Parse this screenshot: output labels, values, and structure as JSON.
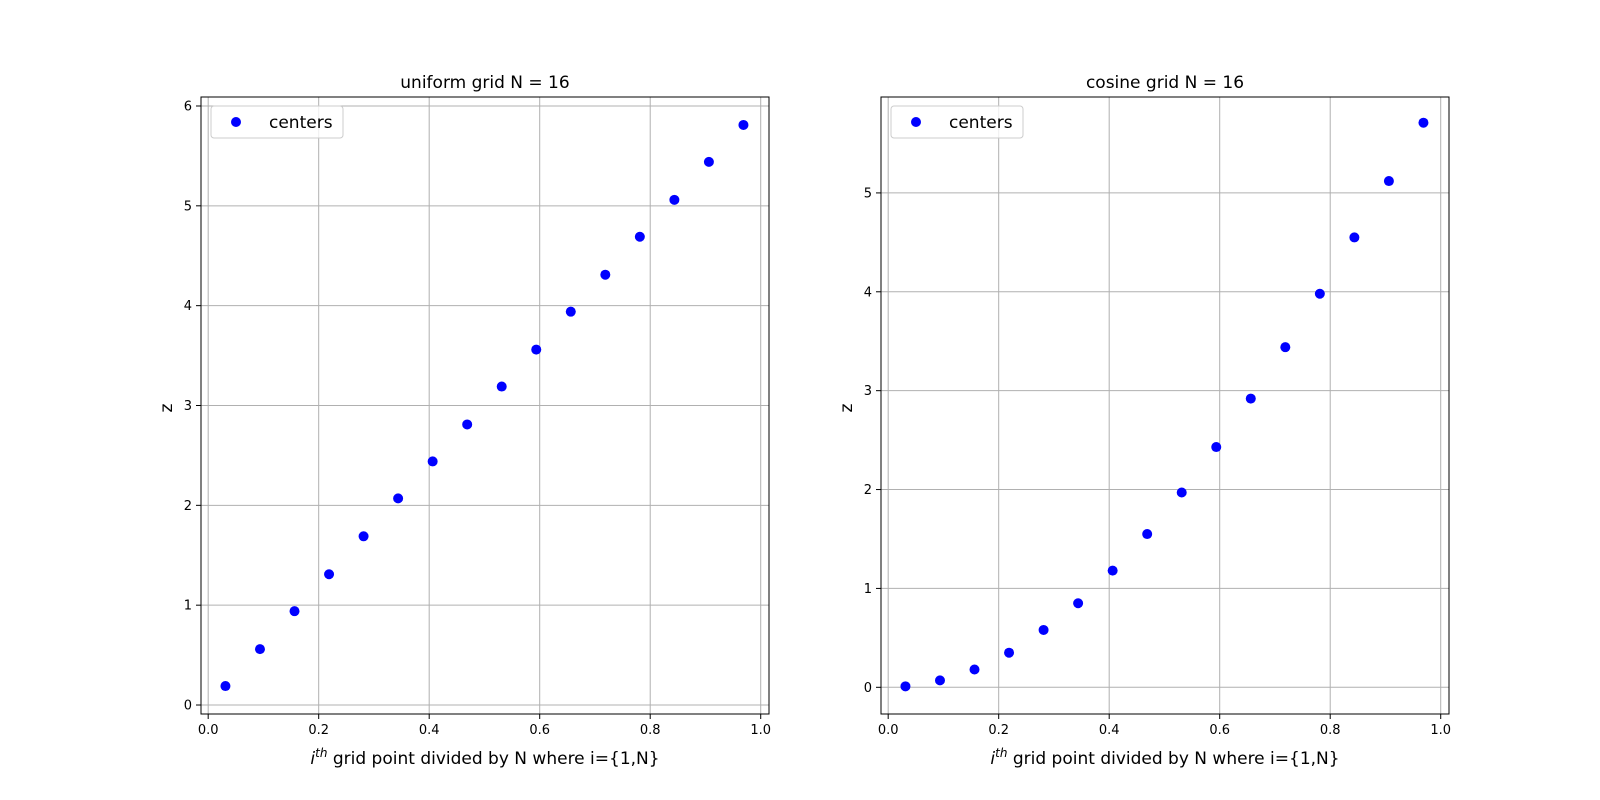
{
  "chart_data": [
    {
      "type": "scatter",
      "title": "uniform grid N = 16",
      "xlabel_sup": "th",
      "xlabel_i": "i",
      "xlabel_rest": " grid point divided by N where i={1,N}",
      "ylabel": "z",
      "xlim": [
        -0.013,
        1.015
      ],
      "ylim": [
        -0.09,
        6.09
      ],
      "xticks": [
        0.0,
        0.2,
        0.4,
        0.6,
        0.8,
        1.0
      ],
      "xtick_labels": [
        "0.0",
        "0.2",
        "0.4",
        "0.6",
        "0.8",
        "1.0"
      ],
      "yticks": [
        0,
        1,
        2,
        3,
        4,
        5,
        6
      ],
      "ytick_labels": [
        "0",
        "1",
        "2",
        "3",
        "4",
        "5",
        "6"
      ],
      "grid": true,
      "legend_position": "top-left",
      "series": [
        {
          "name": "centers",
          "color": "#0000ff",
          "x": [
            0.03125,
            0.09375,
            0.15625,
            0.21875,
            0.28125,
            0.34375,
            0.40625,
            0.46875,
            0.53125,
            0.59375,
            0.65625,
            0.71875,
            0.78125,
            0.84375,
            0.90625,
            0.96875
          ],
          "y": [
            0.19,
            0.56,
            0.94,
            1.31,
            1.69,
            2.07,
            2.44,
            2.81,
            3.19,
            3.56,
            3.94,
            4.31,
            4.69,
            5.06,
            5.44,
            5.81
          ]
        }
      ]
    },
    {
      "type": "scatter",
      "title": "cosine grid N = 16",
      "xlabel_sup": "th",
      "xlabel_i": "i",
      "xlabel_rest": " grid point divided by N where i={1,N}",
      "ylabel": "z",
      "xlim": [
        -0.013,
        1.015
      ],
      "ylim": [
        -0.27,
        5.97
      ],
      "xticks": [
        0.0,
        0.2,
        0.4,
        0.6,
        0.8,
        1.0
      ],
      "xtick_labels": [
        "0.0",
        "0.2",
        "0.4",
        "0.6",
        "0.8",
        "1.0"
      ],
      "yticks": [
        0,
        1,
        2,
        3,
        4,
        5
      ],
      "ytick_labels": [
        "0",
        "1",
        "2",
        "3",
        "4",
        "5"
      ],
      "grid": true,
      "legend_position": "top-left",
      "series": [
        {
          "name": "centers",
          "color": "#0000ff",
          "x": [
            0.03125,
            0.09375,
            0.15625,
            0.21875,
            0.28125,
            0.34375,
            0.40625,
            0.46875,
            0.53125,
            0.59375,
            0.65625,
            0.71875,
            0.78125,
            0.84375,
            0.90625,
            0.96875
          ],
          "y": [
            0.01,
            0.07,
            0.18,
            0.35,
            0.58,
            0.85,
            1.18,
            1.55,
            1.97,
            2.43,
            2.92,
            3.44,
            3.98,
            4.55,
            5.12,
            5.71
          ]
        }
      ]
    }
  ]
}
